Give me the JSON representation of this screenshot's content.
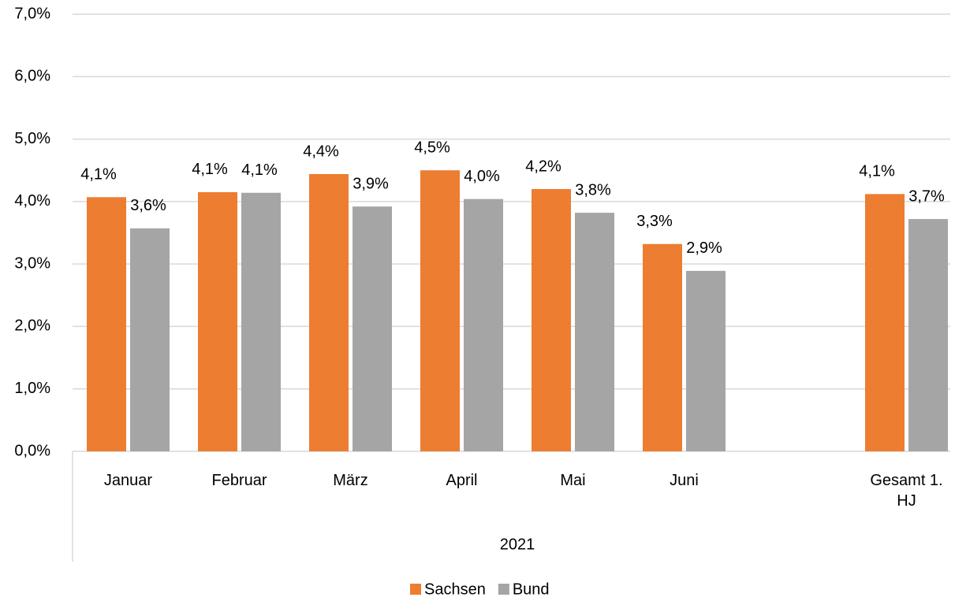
{
  "chart_data": {
    "type": "bar",
    "categories": [
      "Januar",
      "Februar",
      "März",
      "April",
      "Mai",
      "Juni",
      null,
      "Gesamt 1. HJ"
    ],
    "group_label": "2021",
    "series": [
      {
        "name": "Sachsen",
        "color": "#ED7D31",
        "values": [
          4.07,
          4.15,
          4.44,
          4.5,
          4.2,
          3.32,
          null,
          4.12
        ],
        "value_labels": [
          "4,1%",
          "4,1%",
          "4,4%",
          "4,5%",
          "4,2%",
          "3,3%",
          null,
          "4,1%"
        ]
      },
      {
        "name": "Bund",
        "color": "#A5A5A5",
        "values": [
          3.57,
          4.14,
          3.92,
          4.04,
          3.82,
          2.89,
          null,
          3.72
        ],
        "value_labels": [
          "3,6%",
          "4,1%",
          "3,9%",
          "4,0%",
          "3,8%",
          "2,9%",
          null,
          "3,7%"
        ]
      }
    ],
    "ylim": [
      0,
      7
    ],
    "yticks": [
      {
        "value": 0,
        "label": "0,0%"
      },
      {
        "value": 1,
        "label": "1,0%"
      },
      {
        "value": 2,
        "label": "2,0%"
      },
      {
        "value": 3,
        "label": "3,0%"
      },
      {
        "value": 4,
        "label": "4,0%"
      },
      {
        "value": 5,
        "label": "5,0%"
      },
      {
        "value": 6,
        "label": "6,0%"
      },
      {
        "value": 7,
        "label": "7,0%"
      }
    ],
    "grid": true,
    "legend": "bottom"
  }
}
